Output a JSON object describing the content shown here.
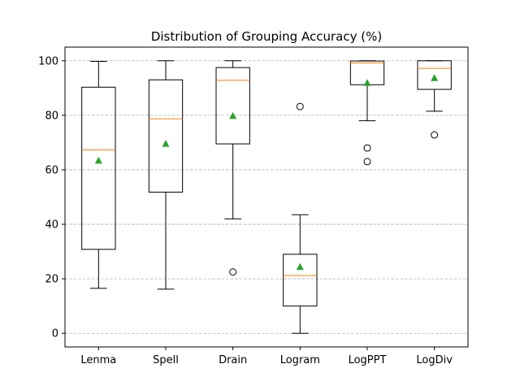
{
  "chart_data": {
    "type": "boxplot",
    "title": "Distribution of Grouping Accuracy (%)",
    "xlabel": "",
    "ylabel": "",
    "ylim": [
      -5,
      105
    ],
    "yticks": [
      0,
      20,
      40,
      60,
      80,
      100
    ],
    "grid": "horizontal dashed",
    "categories": [
      "Lenma",
      "Spell",
      "Drain",
      "Logram",
      "LogPPT",
      "LogDiv"
    ],
    "boxes": [
      {
        "name": "Lenma",
        "whisker_low": 16.5,
        "q1": 30.8,
        "median": 67.3,
        "q3": 90.3,
        "whisker_high": 99.8,
        "mean": 63.3,
        "outliers": []
      },
      {
        "name": "Spell",
        "whisker_low": 16.2,
        "q1": 51.8,
        "median": 78.7,
        "q3": 93.0,
        "whisker_high": 100.0,
        "mean": 69.5,
        "outliers": []
      },
      {
        "name": "Drain",
        "whisker_low": 42.0,
        "q1": 69.5,
        "median": 92.8,
        "q3": 97.5,
        "whisker_high": 100.0,
        "mean": 79.7,
        "outliers": [
          22.5
        ]
      },
      {
        "name": "Logram",
        "whisker_low": 0.0,
        "q1": 10.0,
        "median": 21.2,
        "q3": 29.0,
        "whisker_high": 43.5,
        "mean": 24.3,
        "outliers": [
          83.2
        ]
      },
      {
        "name": "LogPPT",
        "whisker_low": 78.0,
        "q1": 91.2,
        "median": 99.2,
        "q3": 99.9,
        "whisker_high": 100.0,
        "mean": 91.8,
        "outliers": [
          68.0,
          63.0
        ]
      },
      {
        "name": "LogDiv",
        "whisker_low": 81.5,
        "q1": 89.5,
        "median": 97.2,
        "q3": 100.0,
        "whisker_high": 100.0,
        "mean": 93.6,
        "outliers": [
          72.8
        ]
      }
    ],
    "colors": {
      "box": "#000000",
      "median": "#ff7f0e",
      "mean": "#2ca02c",
      "grid": "#b0b0b0"
    }
  }
}
